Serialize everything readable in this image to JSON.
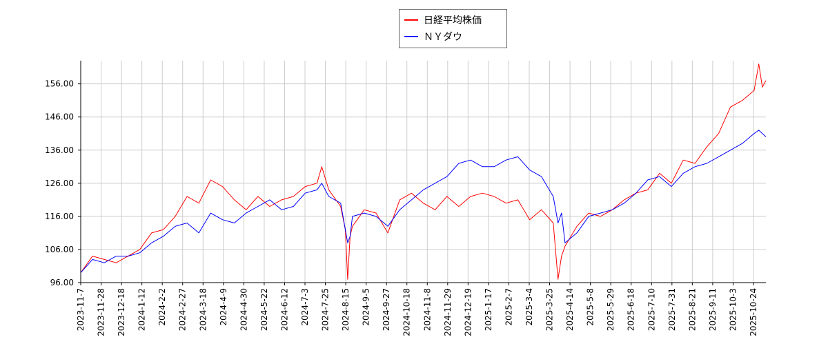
{
  "chart_data": {
    "type": "line",
    "title": "",
    "xlabel": "",
    "ylabel": "",
    "ylim": [
      96,
      163
    ],
    "y_ticks": [
      96,
      106,
      116,
      126,
      136,
      146,
      156
    ],
    "y_tick_labels": [
      "96.00",
      "106.00",
      "116.00",
      "126.00",
      "136.00",
      "146.00",
      "156.00"
    ],
    "x_tick_labels": [
      "2023-11-7",
      "2023-11-28",
      "2023-12-18",
      "2024-1-12",
      "2024-2-2",
      "2024-2-27",
      "2024-3-18",
      "2024-4-9",
      "2024-4-30",
      "2024-5-22",
      "2024-6-12",
      "2024-7-3",
      "2024-7-25",
      "2024-8-15",
      "2024-9-5",
      "2024-9-27",
      "2024-10-18",
      "2024-11-8",
      "2024-11-29",
      "2024-12-19",
      "2025-1-17",
      "2025-2-7",
      "2025-3-4",
      "2025-3-25",
      "2025-4-14",
      "2025-5-8",
      "2025-5-29",
      "2025-6-18",
      "2025-7-10",
      "2025-7-31",
      "2025-8-21",
      "2025-9-11",
      "2025-10-3",
      "2025-10-24"
    ],
    "grid": true,
    "legend_position": "top-center",
    "series": [
      {
        "name": "日経平均株価",
        "color": "#ff0000",
        "points": [
          [
            0,
            99
          ],
          [
            1,
            104
          ],
          [
            2,
            103
          ],
          [
            3,
            102
          ],
          [
            4,
            104
          ],
          [
            5,
            106
          ],
          [
            6,
            111
          ],
          [
            7,
            112
          ],
          [
            8,
            116
          ],
          [
            9,
            122
          ],
          [
            10,
            120
          ],
          [
            11,
            127
          ],
          [
            12,
            125
          ],
          [
            13,
            121
          ],
          [
            14,
            118
          ],
          [
            15,
            122
          ],
          [
            16,
            119
          ],
          [
            17,
            121
          ],
          [
            18,
            122
          ],
          [
            19,
            125
          ],
          [
            20,
            126
          ],
          [
            20.4,
            131
          ],
          [
            21,
            124
          ],
          [
            22,
            119
          ],
          [
            22.4,
            112
          ],
          [
            22.6,
            97
          ],
          [
            22.8,
            110
          ],
          [
            23,
            113
          ],
          [
            24,
            118
          ],
          [
            25,
            117
          ],
          [
            26,
            111
          ],
          [
            27,
            121
          ],
          [
            28,
            123
          ],
          [
            29,
            120
          ],
          [
            30,
            118
          ],
          [
            31,
            122
          ],
          [
            32,
            119
          ],
          [
            33,
            122
          ],
          [
            34,
            123
          ],
          [
            35,
            122
          ],
          [
            36,
            120
          ],
          [
            37,
            121
          ],
          [
            38,
            115
          ],
          [
            39,
            118
          ],
          [
            40,
            114
          ],
          [
            40.4,
            97
          ],
          [
            40.7,
            104
          ],
          [
            41,
            107
          ],
          [
            42,
            113
          ],
          [
            43,
            117
          ],
          [
            44,
            116
          ],
          [
            45,
            118
          ],
          [
            46,
            121
          ],
          [
            47,
            123
          ],
          [
            48,
            124
          ],
          [
            49,
            129
          ],
          [
            50,
            126
          ],
          [
            51,
            133
          ],
          [
            52,
            132
          ],
          [
            53,
            137
          ],
          [
            54,
            141
          ],
          [
            55,
            149
          ],
          [
            56,
            151
          ],
          [
            57,
            154
          ],
          [
            57.4,
            162
          ],
          [
            57.7,
            155
          ],
          [
            58,
            157
          ]
        ]
      },
      {
        "name": "ＮＹダウ",
        "color": "#0000ff",
        "points": [
          [
            0,
            99
          ],
          [
            1,
            103
          ],
          [
            2,
            102
          ],
          [
            3,
            104
          ],
          [
            4,
            104
          ],
          [
            5,
            105
          ],
          [
            6,
            108
          ],
          [
            7,
            110
          ],
          [
            8,
            113
          ],
          [
            9,
            114
          ],
          [
            10,
            111
          ],
          [
            11,
            117
          ],
          [
            12,
            115
          ],
          [
            13,
            114
          ],
          [
            14,
            117
          ],
          [
            15,
            119
          ],
          [
            16,
            121
          ],
          [
            17,
            118
          ],
          [
            18,
            119
          ],
          [
            19,
            123
          ],
          [
            20,
            124
          ],
          [
            20.4,
            126
          ],
          [
            21,
            122
          ],
          [
            22,
            120
          ],
          [
            22.4,
            112
          ],
          [
            22.6,
            108
          ],
          [
            22.8,
            110
          ],
          [
            23,
            116
          ],
          [
            24,
            117
          ],
          [
            25,
            116
          ],
          [
            26,
            113
          ],
          [
            27,
            118
          ],
          [
            28,
            121
          ],
          [
            29,
            124
          ],
          [
            30,
            126
          ],
          [
            31,
            128
          ],
          [
            32,
            132
          ],
          [
            33,
            133
          ],
          [
            34,
            131
          ],
          [
            35,
            131
          ],
          [
            36,
            133
          ],
          [
            37,
            134
          ],
          [
            38,
            130
          ],
          [
            39,
            128
          ],
          [
            40,
            122
          ],
          [
            40.4,
            114
          ],
          [
            40.7,
            117
          ],
          [
            41,
            108
          ],
          [
            42,
            111
          ],
          [
            43,
            116
          ],
          [
            44,
            117
          ],
          [
            45,
            118
          ],
          [
            46,
            120
          ],
          [
            47,
            123
          ],
          [
            48,
            127
          ],
          [
            49,
            128
          ],
          [
            50,
            125
          ],
          [
            51,
            129
          ],
          [
            52,
            131
          ],
          [
            53,
            132
          ],
          [
            54,
            134
          ],
          [
            55,
            136
          ],
          [
            56,
            138
          ],
          [
            57,
            141
          ],
          [
            57.4,
            142
          ],
          [
            57.7,
            141
          ],
          [
            58,
            140
          ]
        ]
      }
    ]
  }
}
